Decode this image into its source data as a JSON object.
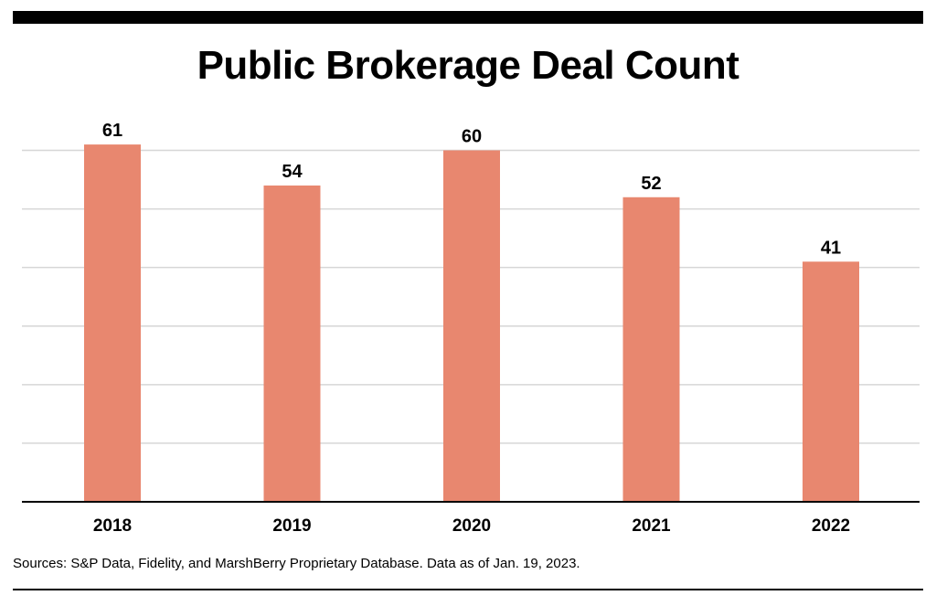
{
  "chart_data": {
    "type": "bar",
    "title": "Public Brokerage Deal Count",
    "categories": [
      "2018",
      "2019",
      "2020",
      "2021",
      "2022"
    ],
    "values": [
      61,
      54,
      60,
      52,
      41
    ],
    "ylim": [
      0,
      60
    ],
    "grid": true,
    "bar_color": "#E8876F",
    "xlabel": "",
    "ylabel": ""
  },
  "footer": {
    "sources": "Sources: S&P Data, Fidelity, and MarshBerry Proprietary Database. Data as of Jan. 19, 2023."
  }
}
